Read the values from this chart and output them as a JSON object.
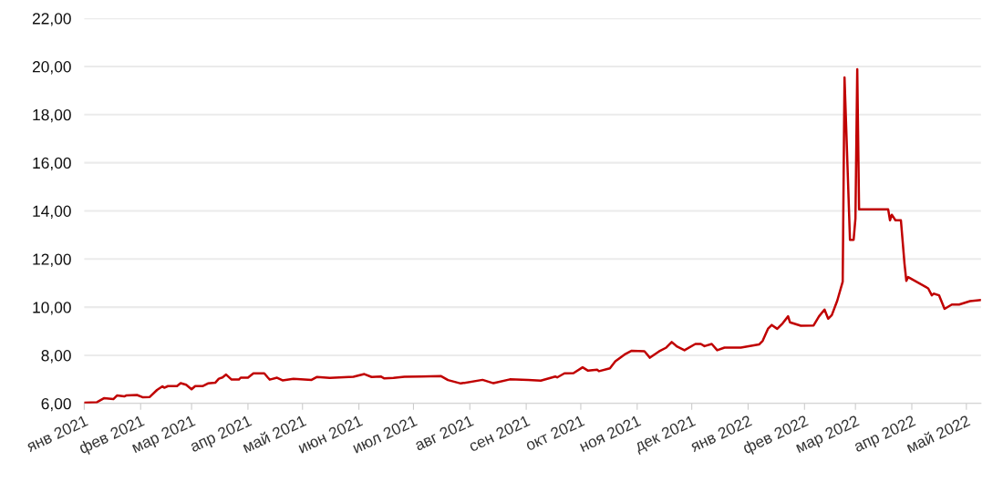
{
  "chart_data": {
    "type": "line",
    "grid": "y",
    "line_style": "solid",
    "marker": "none",
    "xlim": [
      "2021-01-01",
      "2022-05-09"
    ],
    "ylim": [
      6,
      22
    ],
    "yticks": [
      {
        "value": 6,
        "label": "6,00"
      },
      {
        "value": 8,
        "label": "8,00"
      },
      {
        "value": 10,
        "label": "10,00"
      },
      {
        "value": 12,
        "label": "12,00"
      },
      {
        "value": 14,
        "label": "14,00"
      },
      {
        "value": 16,
        "label": "16,00"
      },
      {
        "value": 18,
        "label": "18,00"
      },
      {
        "value": 20,
        "label": "20,00"
      },
      {
        "value": 22,
        "label": "22,00"
      }
    ],
    "xticks": [
      {
        "value": "2021-01-01",
        "label": "янв 2021"
      },
      {
        "value": "2021-02-01",
        "label": "фев 2021"
      },
      {
        "value": "2021-03-01",
        "label": "мар 2021"
      },
      {
        "value": "2021-04-01",
        "label": "апр 2021"
      },
      {
        "value": "2021-05-01",
        "label": "май 2021"
      },
      {
        "value": "2021-06-01",
        "label": "июн 2021"
      },
      {
        "value": "2021-07-01",
        "label": "июл 2021"
      },
      {
        "value": "2021-08-01",
        "label": "авг 2021"
      },
      {
        "value": "2021-09-01",
        "label": "сен 2021"
      },
      {
        "value": "2021-10-01",
        "label": "окт 2021"
      },
      {
        "value": "2021-11-01",
        "label": "ноя 2021"
      },
      {
        "value": "2021-12-01",
        "label": "дек 2021"
      },
      {
        "value": "2022-01-01",
        "label": "янв 2022"
      },
      {
        "value": "2022-02-01",
        "label": "фев 2022"
      },
      {
        "value": "2022-03-01",
        "label": "мар 2022"
      },
      {
        "value": "2022-04-01",
        "label": "апр 2022"
      },
      {
        "value": "2022-05-01",
        "label": "май 2022"
      }
    ],
    "series": [
      {
        "color": "#c00000",
        "x": [
          "2021-01-01",
          "2021-01-08",
          "2021-01-12",
          "2021-01-17",
          "2021-01-19",
          "2021-01-23",
          "2021-01-24",
          "2021-01-30",
          "2021-02-02",
          "2021-02-06",
          "2021-02-10",
          "2021-02-13",
          "2021-02-14",
          "2021-02-16",
          "2021-02-21",
          "2021-02-23",
          "2021-02-26",
          "2021-03-01",
          "2021-03-03",
          "2021-03-07",
          "2021-03-10",
          "2021-03-14",
          "2021-03-16",
          "2021-03-18",
          "2021-03-20",
          "2021-03-23",
          "2021-03-27",
          "2021-03-28",
          "2021-04-01",
          "2021-04-04",
          "2021-04-10",
          "2021-04-12",
          "2021-04-13",
          "2021-04-17",
          "2021-04-20",
          "2021-04-26",
          "2021-05-06",
          "2021-05-09",
          "2021-05-16",
          "2021-05-29",
          "2021-06-04",
          "2021-06-08",
          "2021-06-13",
          "2021-06-15",
          "2021-06-20",
          "2021-06-26",
          "2021-07-05",
          "2021-07-16",
          "2021-07-20",
          "2021-07-27",
          "2021-08-08",
          "2021-08-14",
          "2021-08-23",
          "2021-09-02",
          "2021-09-09",
          "2021-09-17",
          "2021-09-18",
          "2021-09-22",
          "2021-09-27",
          "2021-10-02",
          "2021-10-05",
          "2021-10-10",
          "2021-10-11",
          "2021-10-17",
          "2021-10-20",
          "2021-10-25",
          "2021-10-29",
          "2021-11-05",
          "2021-11-08",
          "2021-11-13",
          "2021-11-17",
          "2021-11-20",
          "2021-11-23",
          "2021-11-27",
          "2021-12-03",
          "2021-12-06",
          "2021-12-08",
          "2021-12-12",
          "2021-12-15",
          "2021-12-19",
          "2021-12-28",
          "2022-01-07",
          "2022-01-09",
          "2022-01-12",
          "2022-01-14",
          "2022-01-17",
          "2022-01-20",
          "2022-01-23",
          "2022-01-24",
          "2022-01-30",
          "2022-02-06",
          "2022-02-09",
          "2022-02-12",
          "2022-02-14",
          "2022-02-16",
          "2022-02-19",
          "2022-02-22",
          "2022-02-23",
          "2022-02-26",
          "2022-02-28",
          "2022-03-01",
          "2022-03-02",
          "2022-03-03",
          "2022-03-19",
          "2022-03-20",
          "2022-03-21",
          "2022-03-23",
          "2022-03-26",
          "2022-03-28",
          "2022-03-29",
          "2022-03-30",
          "2022-04-10",
          "2022-04-12",
          "2022-04-13",
          "2022-04-16",
          "2022-04-19",
          "2022-04-23",
          "2022-04-27",
          "2022-05-03",
          "2022-05-09"
        ],
        "values": [
          6.03,
          6.05,
          6.22,
          6.18,
          6.33,
          6.29,
          6.33,
          6.35,
          6.26,
          6.27,
          6.56,
          6.71,
          6.65,
          6.72,
          6.72,
          6.84,
          6.78,
          6.59,
          6.72,
          6.72,
          6.83,
          6.86,
          7.03,
          7.08,
          7.2,
          6.99,
          6.99,
          7.07,
          7.07,
          7.25,
          7.25,
          7.07,
          6.99,
          7.07,
          6.96,
          7.02,
          6.98,
          7.1,
          7.06,
          7.11,
          7.22,
          7.1,
          7.12,
          7.04,
          7.06,
          7.11,
          7.12,
          7.14,
          6.97,
          6.83,
          6.98,
          6.84,
          7.0,
          6.98,
          6.95,
          7.12,
          7.08,
          7.25,
          7.26,
          7.5,
          7.36,
          7.4,
          7.34,
          7.46,
          7.75,
          8.03,
          8.19,
          8.17,
          7.9,
          8.16,
          8.32,
          8.55,
          8.36,
          8.21,
          8.47,
          8.47,
          8.38,
          8.47,
          8.21,
          8.32,
          8.32,
          8.45,
          8.6,
          9.11,
          9.26,
          9.1,
          9.33,
          9.62,
          9.37,
          9.23,
          9.24,
          9.62,
          9.9,
          9.52,
          9.67,
          10.27,
          11.06,
          19.54,
          12.8,
          12.8,
          13.68,
          19.88,
          14.06,
          14.06,
          13.61,
          13.84,
          13.61,
          13.61,
          11.79,
          11.09,
          11.25,
          10.78,
          10.49,
          10.56,
          10.49,
          9.93,
          10.11,
          10.11,
          10.25,
          10.3
        ]
      }
    ]
  }
}
